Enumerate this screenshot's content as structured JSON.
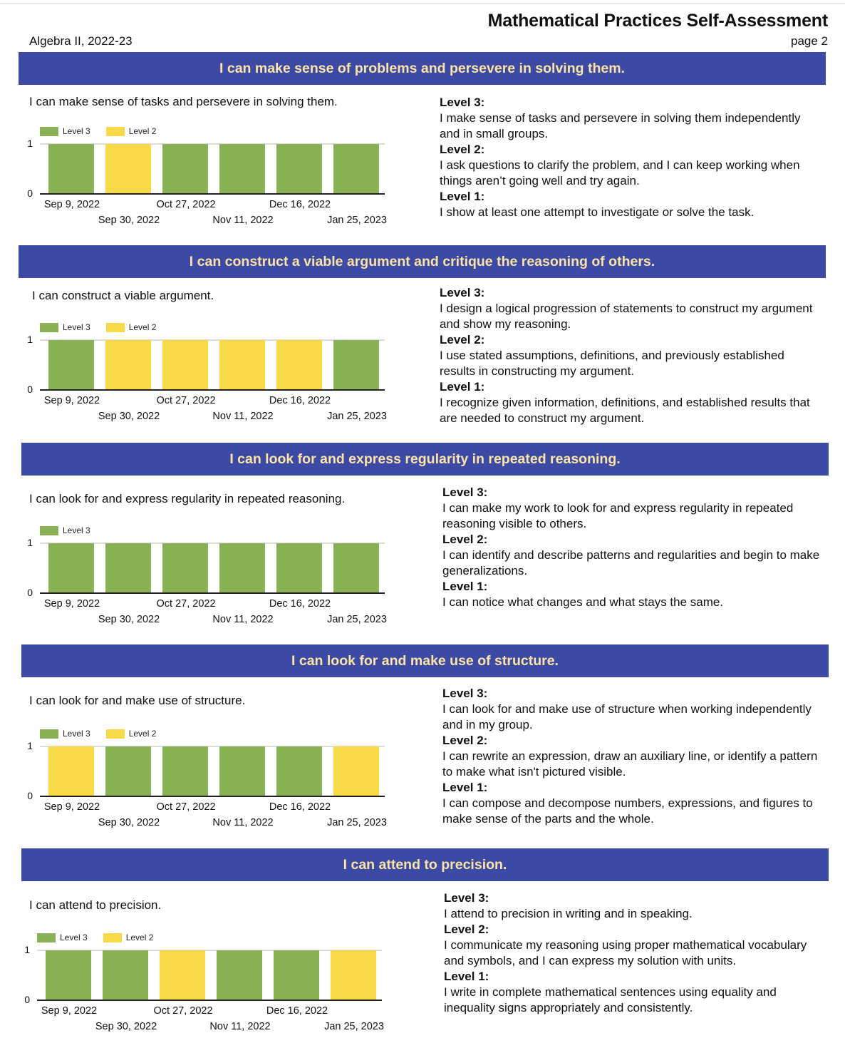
{
  "header": {
    "title": "Mathematical Practices Self-Assessment",
    "subtitle": "Algebra II, 2022-23",
    "page": "page 2"
  },
  "colors": {
    "banner_bg": "#3d4aa5",
    "banner_text": "#fbe5a6",
    "level3": "#8bb156",
    "level2": "#f8d948"
  },
  "sections": [
    {
      "banner": "I can make sense of problems and persevere in solving them.",
      "label": "I can make sense of tasks and persevere in solving them.",
      "legend": [
        "Level 3",
        "Level 2"
      ],
      "levels": [
        {
          "name": "Level 3:",
          "text": "I make sense of tasks and persevere in solving them independently and in small groups."
        },
        {
          "name": "Level 2:",
          "text": "I ask questions to clarify the problem, and I can keep working when things aren’t going well and try again."
        },
        {
          "name": "Level 1:",
          "text": "I show at least one attempt to investigate or solve the task."
        }
      ]
    },
    {
      "banner": "I can construct a viable argument and critique the reasoning of others.",
      "label": "I can construct a viable argument.",
      "legend": [
        "Level 3",
        "Level 2"
      ],
      "levels": [
        {
          "name": "Level 3:",
          "text": "I design a logical progression of statements to construct my argument and show my reasoning."
        },
        {
          "name": "Level 2:",
          "text": "I use stated assumptions, definitions, and previously established results in constructing my argument."
        },
        {
          "name": "Level 1:",
          "text": "I recognize given information, definitions, and established results that are needed to construct my argument."
        }
      ]
    },
    {
      "banner": "I can look for and express regularity in repeated reasoning.",
      "label": "I can look for and express regularity in repeated reasoning.",
      "legend": [
        "Level 3"
      ],
      "levels": [
        {
          "name": "Level 3:",
          "text": "I can make my work to look for and express regularity in repeated reasoning visible to others."
        },
        {
          "name": "Level 2:",
          "text": "I can identify and describe patterns and regularities and begin to make generalizations."
        },
        {
          "name": "Level 1:",
          "text": "I can notice what changes and what stays the same."
        }
      ]
    },
    {
      "banner": "I can look for and make use of structure.",
      "label": "I can look for and make use of structure.",
      "legend": [
        "Level 3",
        "Level 2"
      ],
      "levels": [
        {
          "name": "Level 3:",
          "text": "I can look for and make use of structure when working independently and in my group."
        },
        {
          "name": "Level 2:",
          "text": "I can rewrite an expression, draw an auxiliary line, or identify a pattern to make what isn't pictured visible."
        },
        {
          "name": "Level 1:",
          "text": "I can compose and decompose numbers, expressions, and figures to make sense of the parts and the whole."
        }
      ]
    },
    {
      "banner": "I can attend to precision.",
      "label": "I can attend to precision.",
      "legend": [
        "Level 3",
        "Level 2"
      ],
      "levels": [
        {
          "name": "Level 3:",
          "text": "I attend to precision in writing and in speaking."
        },
        {
          "name": "Level 2:",
          "text": "I communicate my reasoning using proper mathematical vocabulary and symbols, and I can express my solution with units."
        },
        {
          "name": "Level 1:",
          "text": "I write in complete mathematical sentences using equality and inequality signs appropriately and consistently."
        }
      ]
    }
  ],
  "chart_data": [
    {
      "type": "bar",
      "title": "I can make sense of tasks and persevere in solving them.",
      "categories": [
        "Sep 9, 2022",
        "Sep 30, 2022",
        "Oct 27, 2022",
        "Nov 11, 2022",
        "Dec 16, 2022",
        "Jan 25, 2023"
      ],
      "values": [
        1,
        1,
        1,
        1,
        1,
        1
      ],
      "bar_levels": [
        "Level 3",
        "Level 2",
        "Level 3",
        "Level 3",
        "Level 3",
        "Level 3"
      ],
      "legend": [
        "Level 3",
        "Level 2"
      ],
      "yticks": [
        "0",
        "1"
      ],
      "ylim": [
        0,
        1
      ],
      "legend_position": "top-left",
      "grid": true
    },
    {
      "type": "bar",
      "title": "I can construct a viable argument.",
      "categories": [
        "Sep 9, 2022",
        "Sep 30, 2022",
        "Oct 27, 2022",
        "Nov 11, 2022",
        "Dec 16, 2022",
        "Jan 25, 2023"
      ],
      "values": [
        1,
        1,
        1,
        1,
        1,
        1
      ],
      "bar_levels": [
        "Level 3",
        "Level 2",
        "Level 2",
        "Level 2",
        "Level 2",
        "Level 3"
      ],
      "legend": [
        "Level 3",
        "Level 2"
      ],
      "yticks": [
        "0",
        "1"
      ],
      "ylim": [
        0,
        1
      ],
      "legend_position": "top-left",
      "grid": true
    },
    {
      "type": "bar",
      "title": "I can look for and express regularity in repeated reasoning.",
      "categories": [
        "Sep 9, 2022",
        "Sep 30, 2022",
        "Oct 27, 2022",
        "Nov 11, 2022",
        "Dec 16, 2022",
        "Jan 25, 2023"
      ],
      "values": [
        1,
        1,
        1,
        1,
        1,
        1
      ],
      "bar_levels": [
        "Level 3",
        "Level 3",
        "Level 3",
        "Level 3",
        "Level 3",
        "Level 3"
      ],
      "legend": [
        "Level 3"
      ],
      "yticks": [
        "0",
        "1"
      ],
      "ylim": [
        0,
        1
      ],
      "legend_position": "top-left",
      "grid": true
    },
    {
      "type": "bar",
      "title": "I can look for and make use of structure.",
      "categories": [
        "Sep 9, 2022",
        "Sep 30, 2022",
        "Oct 27, 2022",
        "Nov 11, 2022",
        "Dec 16, 2022",
        "Jan 25, 2023"
      ],
      "values": [
        1,
        1,
        1,
        1,
        1,
        1
      ],
      "bar_levels": [
        "Level 2",
        "Level 3",
        "Level 3",
        "Level 3",
        "Level 3",
        "Level 2"
      ],
      "legend": [
        "Level 3",
        "Level 2"
      ],
      "yticks": [
        "0",
        "1"
      ],
      "ylim": [
        0,
        1
      ],
      "legend_position": "top-left",
      "grid": true
    },
    {
      "type": "bar",
      "title": "I can attend to precision.",
      "categories": [
        "Sep 9, 2022",
        "Sep 30, 2022",
        "Oct 27, 2022",
        "Nov 11, 2022",
        "Dec 16, 2022",
        "Jan 25, 2023"
      ],
      "values": [
        1,
        1,
        1,
        1,
        1,
        1
      ],
      "bar_levels": [
        "Level 3",
        "Level 3",
        "Level 2",
        "Level 3",
        "Level 3",
        "Level 2"
      ],
      "legend": [
        "Level 3",
        "Level 2"
      ],
      "yticks": [
        "0",
        "1"
      ],
      "ylim": [
        0,
        1
      ],
      "legend_position": "top-left",
      "grid": true
    }
  ]
}
